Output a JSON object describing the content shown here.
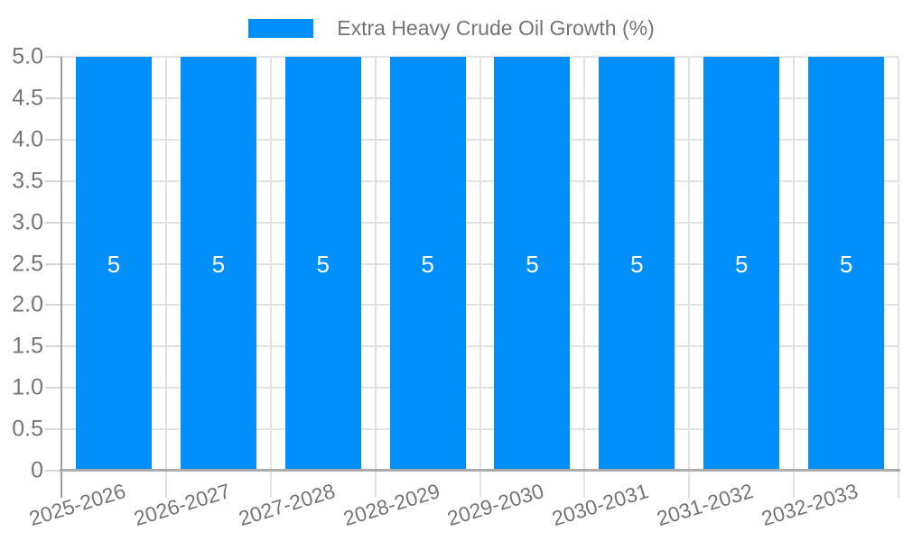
{
  "legend": {
    "label": "Extra Heavy Crude Oil Growth (%)"
  },
  "colors": {
    "bar": "#008FFB",
    "grid": "#e2e2e2",
    "tick": "#d6d6d6",
    "y_axis_line": "#9e9e9e",
    "x_axis_line": "#ababab",
    "axis_text": "#757575",
    "bar_label_text": "#ffffff",
    "background": "#ffffff"
  },
  "chart_data": {
    "type": "bar",
    "title": "",
    "series_name": "Extra Heavy Crude Oil Growth (%)",
    "categories": [
      "2025-2026",
      "2026-2027",
      "2027-2028",
      "2028-2029",
      "2029-2030",
      "2030-2031",
      "2031-2032",
      "2032-2033"
    ],
    "values": [
      5,
      5,
      5,
      5,
      5,
      5,
      5,
      5
    ],
    "bar_labels": [
      "5",
      "5",
      "5",
      "5",
      "5",
      "5",
      "5",
      "5"
    ],
    "xlabel": "",
    "ylabel": "",
    "ylim": [
      0,
      5
    ],
    "ytick_step": 0.5,
    "ytick_labels": [
      "0",
      "0.5",
      "1.0",
      "1.5",
      "2.0",
      "2.5",
      "3.0",
      "3.5",
      "4.0",
      "4.5",
      "5.0"
    ],
    "grid": "on",
    "legend_position": "top",
    "bar_label_position": "center"
  }
}
